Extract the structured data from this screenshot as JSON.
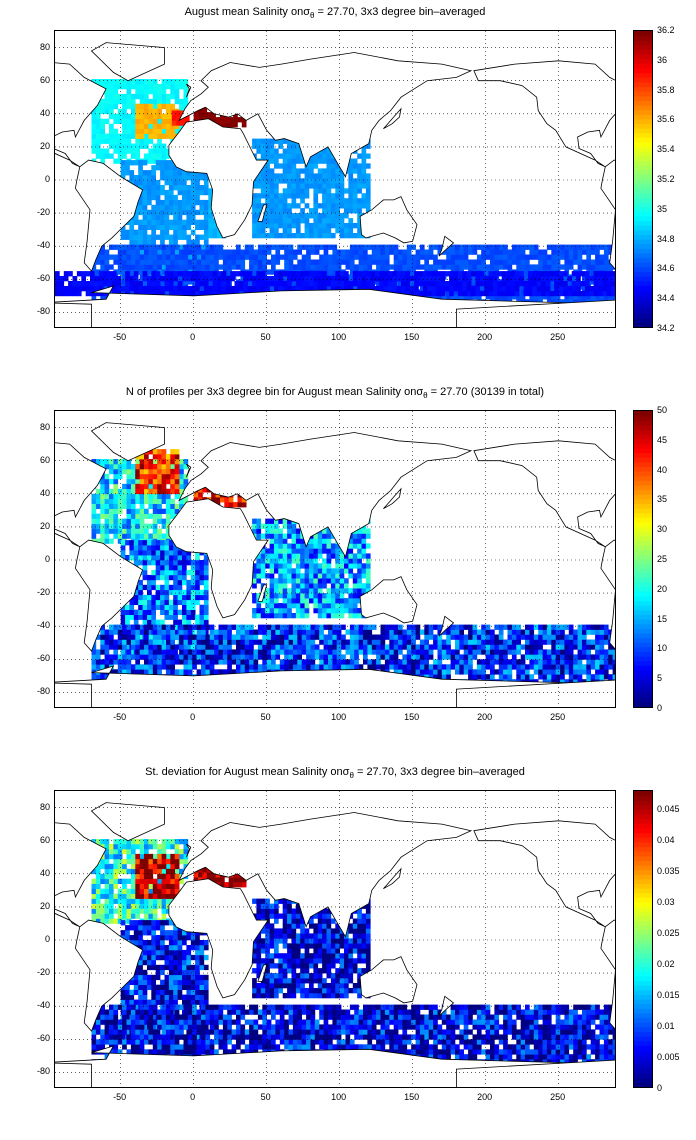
{
  "chart_data": [
    {
      "type": "heatmap",
      "title_pre": "August mean Salinity on",
      "title_sym": "σ",
      "title_sub": "θ",
      "title_post": " = 27.70, 3x3 degree bin–averaged",
      "xlabel": "",
      "ylabel": "",
      "xlim": [
        -95,
        290
      ],
      "ylim": [
        -90,
        90
      ],
      "xticks": [
        -50,
        0,
        50,
        100,
        150,
        200,
        250
      ],
      "yticks": [
        80,
        60,
        40,
        20,
        0,
        -20,
        -40,
        -60,
        -80
      ],
      "colorbar": {
        "min": 34.2,
        "max": 36.2,
        "ticks": [
          "36.2",
          "36",
          "35.8",
          "35.6",
          "35.4",
          "35.2",
          "35",
          "34.8",
          "34.6",
          "34.4",
          "34.2"
        ]
      },
      "regions": [
        {
          "x": [
            -70,
            -5
          ],
          "y": [
            10,
            60
          ],
          "value": 34.95
        },
        {
          "x": [
            -40,
            -10
          ],
          "y": [
            25,
            45
          ],
          "value": 35.6
        },
        {
          "x": [
            -15,
            -5
          ],
          "y": [
            33,
            42
          ],
          "value": 35.9
        },
        {
          "x": [
            0,
            35
          ],
          "y": [
            32,
            42
          ],
          "value": 36.2
        },
        {
          "x": [
            -50,
            10
          ],
          "y": [
            -60,
            10
          ],
          "value": 34.75
        },
        {
          "x": [
            10,
            20
          ],
          "y": [
            -35,
            -5
          ],
          "value": 34.8
        },
        {
          "x": [
            40,
            120
          ],
          "y": [
            -35,
            25
          ],
          "value": 34.75
        },
        {
          "x": [
            -70,
            290
          ],
          "y": [
            -75,
            -40
          ],
          "value": 34.6
        },
        {
          "x": [
            -95,
            290
          ],
          "y": [
            -70,
            -55
          ],
          "value": 34.45
        }
      ]
    },
    {
      "type": "heatmap",
      "title_pre": "N of profiles per 3x3 degree bin for August mean Salinity on",
      "title_sym": "σ",
      "title_sub": "θ",
      "title_post": " = 27.70 (30139 in total)",
      "xlabel": "",
      "ylabel": "",
      "xlim": [
        -95,
        290
      ],
      "ylim": [
        -90,
        90
      ],
      "xticks": [
        -50,
        0,
        50,
        100,
        150,
        200,
        250
      ],
      "yticks": [
        80,
        60,
        40,
        20,
        0,
        -20,
        -40,
        -60,
        -80
      ],
      "colorbar": {
        "min": 0,
        "max": 50,
        "ticks": [
          "50",
          "45",
          "40",
          "35",
          "30",
          "25",
          "20",
          "15",
          "10",
          "5",
          "0"
        ]
      },
      "regions": [
        {
          "x": [
            -70,
            -5
          ],
          "y": [
            10,
            60
          ],
          "value": 18
        },
        {
          "x": [
            -40,
            -10
          ],
          "y": [
            40,
            65
          ],
          "value": 42
        },
        {
          "x": [
            0,
            35
          ],
          "y": [
            32,
            42
          ],
          "value": 45
        },
        {
          "x": [
            -50,
            10
          ],
          "y": [
            -60,
            10
          ],
          "value": 12
        },
        {
          "x": [
            40,
            120
          ],
          "y": [
            -35,
            25
          ],
          "value": 14
        },
        {
          "x": [
            -70,
            290
          ],
          "y": [
            -75,
            -40
          ],
          "value": 8
        }
      ]
    },
    {
      "type": "heatmap",
      "title_pre": "St. deviation for August mean Salinity on",
      "title_sym": "σ",
      "title_sub": "θ",
      "title_post": " = 27.70, 3x3 degree bin–averaged",
      "xlabel": "",
      "ylabel": "",
      "xlim": [
        -95,
        290
      ],
      "ylim": [
        -90,
        90
      ],
      "xticks": [
        -50,
        0,
        50,
        100,
        150,
        200,
        250
      ],
      "yticks": [
        80,
        60,
        40,
        20,
        0,
        -20,
        -40,
        -60,
        -80
      ],
      "colorbar": {
        "min": 0,
        "max": 0.048,
        "ticks": [
          "0.045",
          "0.04",
          "0.035",
          "0.03",
          "0.025",
          "0.02",
          "0.015",
          "0.01",
          "0.005",
          "0"
        ]
      },
      "regions": [
        {
          "x": [
            -70,
            -5
          ],
          "y": [
            10,
            60
          ],
          "value": 0.02
        },
        {
          "x": [
            -40,
            -10
          ],
          "y": [
            25,
            50
          ],
          "value": 0.045
        },
        {
          "x": [
            0,
            35
          ],
          "y": [
            32,
            42
          ],
          "value": 0.048
        },
        {
          "x": [
            -50,
            10
          ],
          "y": [
            -60,
            10
          ],
          "value": 0.006
        },
        {
          "x": [
            40,
            120
          ],
          "y": [
            -35,
            25
          ],
          "value": 0.004
        },
        {
          "x": [
            -70,
            290
          ],
          "y": [
            -75,
            -40
          ],
          "value": 0.005
        }
      ]
    }
  ]
}
